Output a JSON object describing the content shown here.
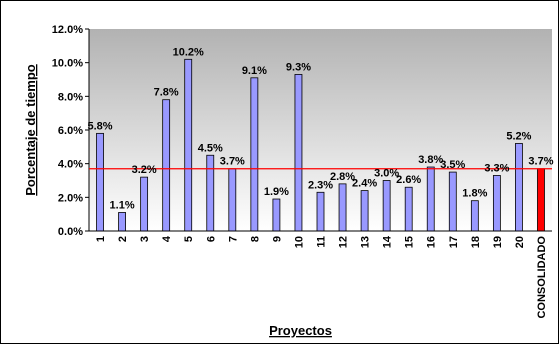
{
  "chart_data": {
    "type": "bar",
    "title": "",
    "xlabel": "Proyectos",
    "ylabel": "Porcentaje de tiempo",
    "ylim": [
      0,
      12
    ],
    "yticks": [
      "0.0%",
      "2.0%",
      "4.0%",
      "6.0%",
      "8.0%",
      "10.0%",
      "12.0%"
    ],
    "categories": [
      "1",
      "2",
      "3",
      "4",
      "5",
      "6",
      "7",
      "8",
      "9",
      "10",
      "11",
      "12",
      "13",
      "14",
      "15",
      "16",
      "17",
      "18",
      "19",
      "20",
      "CONSOLIDADO"
    ],
    "values": [
      5.8,
      1.1,
      3.2,
      7.8,
      10.2,
      4.5,
      3.7,
      9.1,
      1.9,
      9.3,
      2.3,
      2.8,
      2.4,
      3.0,
      2.6,
      3.8,
      3.5,
      1.8,
      3.3,
      5.2,
      3.7
    ],
    "data_labels": [
      "5.8%",
      "1.1%",
      "3.2%",
      "7.8%",
      "10.2%",
      "4.5%",
      "3.7%",
      "9.1%",
      "1.9%",
      "9.3%",
      "2.3%",
      "2.8%",
      "2.4%",
      "3.0%",
      "2.6%",
      "3.8%",
      "3.5%",
      "1.8%",
      "3.3%",
      "5.2%",
      "3.7%"
    ],
    "reference_line": 3.7,
    "grid": false,
    "legend": "none",
    "colors": {
      "bar": "#9999ff",
      "highlight_bar": "#ff0000",
      "reference_line": "#ff0000",
      "plot_top": "#b2b2b2",
      "plot_bottom": "#ffffff"
    }
  }
}
